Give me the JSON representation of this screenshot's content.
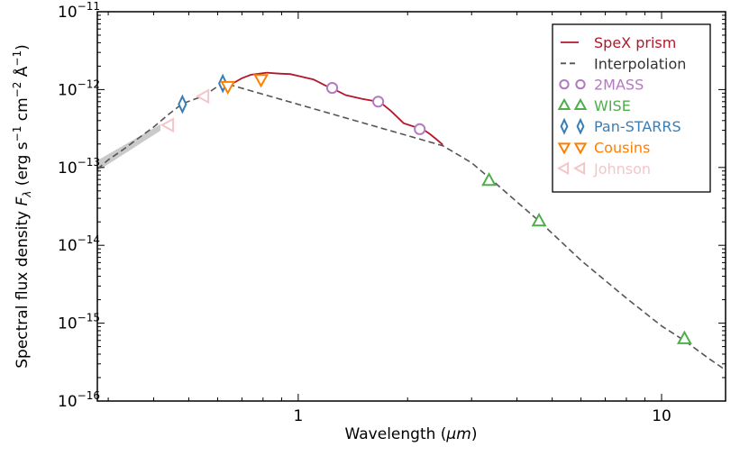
{
  "chart_data": {
    "type": "line",
    "scale": {
      "x": "log",
      "y": "log"
    },
    "xlabel": "Wavelength (μm)",
    "xlabel_prefix": "Wavelength (",
    "xlabel_unit": "μm",
    "xlabel_suffix": ")",
    "ylabel": "Spectral flux density F_λ (erg s^-1 cm^-2 Å^-1)",
    "ylabel_prefix": "Spectral flux density ",
    "ylabel_symbol": "F",
    "ylabel_symbol_sub": "λ",
    "ylabel_units_open": " (erg s",
    "ylabel_units_mid1": " cm",
    "ylabel_units_mid2": " Å",
    "ylabel_units_close": ")",
    "ylabel_exp_s": "−1",
    "ylabel_exp_cm": "−2",
    "ylabel_exp_A": "−1",
    "xlim": [
      0.28,
      15
    ],
    "ylim": [
      1e-16,
      1e-11
    ],
    "x_ticks": [
      {
        "value": 1,
        "label": "1"
      },
      {
        "value": 10,
        "label": "10"
      }
    ],
    "y_ticks": [
      {
        "value": 1e-11,
        "base": "10",
        "exp": "−11"
      },
      {
        "value": 1e-12,
        "base": "10",
        "exp": "−12"
      },
      {
        "value": 1e-13,
        "base": "10",
        "exp": "−13"
      },
      {
        "value": 1e-14,
        "base": "10",
        "exp": "−14"
      },
      {
        "value": 1e-15,
        "base": "10",
        "exp": "−15"
      },
      {
        "value": 1e-16,
        "base": "10",
        "exp": "−16"
      }
    ],
    "legend": {
      "position": "top-right",
      "entries": [
        {
          "label": "SpeX prism",
          "color": "#b2182b",
          "marker": "line"
        },
        {
          "label": "Interpolation",
          "color": "#555555",
          "marker": "dashed"
        },
        {
          "label": "2MASS",
          "color": "#b27ac0",
          "marker": "circle"
        },
        {
          "label": "WISE",
          "color": "#4daf4a",
          "marker": "triangle-up"
        },
        {
          "label": "Pan-STARRS",
          "color": "#377eb8",
          "marker": "diamond"
        },
        {
          "label": "Cousins",
          "color": "#ff7f00",
          "marker": "triangle-down"
        },
        {
          "label": "Johnson",
          "color": "#f4c6c9",
          "marker": "triangle-left"
        }
      ]
    },
    "series": [
      {
        "name": "Interpolation",
        "style": "dashed",
        "color": "#555555",
        "x": [
          0.28,
          0.3,
          0.33,
          0.36,
          0.4,
          0.44,
          0.48,
          0.55,
          0.6,
          0.62,
          0.65,
          2.5,
          3.0,
          3.4,
          4.0,
          4.6,
          6.0,
          8.0,
          10.0,
          11.6,
          13.5,
          15.0
        ],
        "y": [
          9.5e-14,
          1.25e-13,
          1.7e-13,
          2.3e-13,
          3.3e-13,
          4.8e-13,
          6.6e-13,
          8.3e-13,
          1.1e-12,
          1.2e-12,
          1.15e-12,
          1.9e-13,
          1.15e-13,
          7e-14,
          3.6e-14,
          2.05e-14,
          6.4e-15,
          2.1e-15,
          9.2e-16,
          5.9e-16,
          3.5e-16,
          2.5e-16
        ]
      },
      {
        "name": "SpeX prism",
        "style": "solid",
        "color": "#b2182b",
        "x": [
          0.66,
          0.7,
          0.74,
          0.78,
          0.82,
          0.86,
          0.9,
          0.95,
          1.0,
          1.05,
          1.1,
          1.15,
          1.2,
          1.25,
          1.35,
          1.5,
          1.6,
          1.7,
          1.8,
          1.95,
          2.1,
          2.2,
          2.3,
          2.4,
          2.5
        ],
        "y": [
          1.2e-12,
          1.4e-12,
          1.55e-12,
          1.6e-12,
          1.65e-12,
          1.62e-12,
          1.6e-12,
          1.58e-12,
          1.5e-12,
          1.42e-12,
          1.35e-12,
          1.22e-12,
          1.1e-12,
          1.02e-12,
          8.5e-13,
          7.6e-13,
          7.2e-13,
          6.6e-13,
          5.3e-13,
          3.7e-13,
          3.3e-13,
          3.1e-13,
          2.7e-13,
          2.3e-13,
          1.95e-13
        ]
      }
    ],
    "photometry": [
      {
        "system": "2MASS",
        "marker": "circle",
        "color": "#b27ac0",
        "x": [
          1.24,
          1.66,
          2.16
        ],
        "y": [
          1.05e-12,
          7e-13,
          3.1e-13
        ]
      },
      {
        "system": "WISE",
        "marker": "triangle-up",
        "color": "#4daf4a",
        "x": [
          3.35,
          4.6,
          11.56
        ],
        "y": [
          6.8e-14,
          2.05e-14,
          6.3e-16
        ]
      },
      {
        "system": "Pan-STARRS",
        "marker": "diamond",
        "color": "#377eb8",
        "x": [
          0.48,
          0.62
        ],
        "y": [
          6.5e-13,
          1.2e-12
        ]
      },
      {
        "system": "Cousins",
        "marker": "triangle-down",
        "color": "#ff7f00",
        "x": [
          0.64,
          0.79
        ],
        "y": [
          1.1e-12,
          1.35e-12
        ]
      },
      {
        "system": "Johnson",
        "marker": "triangle-left",
        "color": "#f4c6c9",
        "x": [
          0.44,
          0.55
        ],
        "y": [
          3.5e-13,
          8.2e-13
        ]
      }
    ]
  }
}
